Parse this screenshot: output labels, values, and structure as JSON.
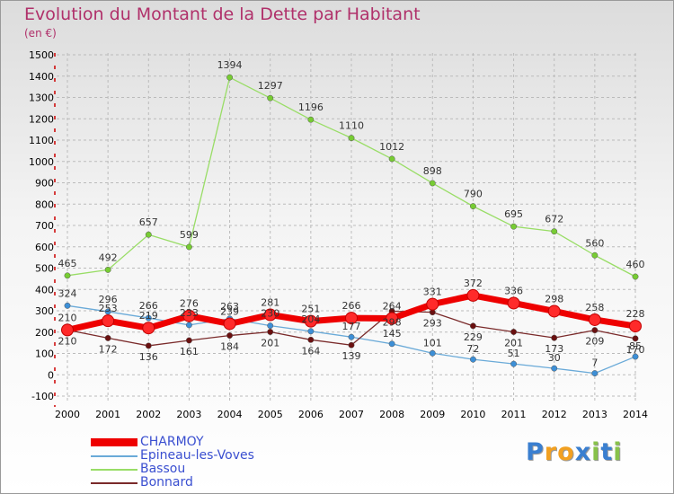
{
  "chart_data": {
    "type": "line",
    "title": "Evolution du Montant de la Dette par Habitant",
    "unit": "(en €)",
    "x": [
      "2000",
      "2001",
      "2002",
      "2003",
      "2004",
      "2005",
      "2006",
      "2007",
      "2008",
      "2009",
      "2010",
      "2011",
      "2012",
      "2013",
      "2014"
    ],
    "ylim": [
      -100,
      1500
    ],
    "yticks": [
      -100,
      0,
      100,
      200,
      300,
      400,
      500,
      600,
      700,
      800,
      900,
      1000,
      1100,
      1200,
      1300,
      1400,
      1500
    ],
    "series": [
      {
        "name": "CHARMOY",
        "color": "#ee0000",
        "markerColor": "#ff2a2a",
        "values": [
          210,
          253,
          219,
          276,
          239,
          281,
          251,
          266,
          264,
          331,
          372,
          336,
          298,
          258,
          228
        ]
      },
      {
        "name": "Epineau-les-Voves",
        "color": "#6aaad8",
        "markerColor": "#3d8fd6",
        "values": [
          324,
          296,
          266,
          233,
          263,
          230,
          204,
          177,
          145,
          101,
          72,
          51,
          30,
          7,
          85
        ]
      },
      {
        "name": "Bassou",
        "color": "#99dd66",
        "markerColor": "#77cc33",
        "values": [
          465,
          492,
          657,
          599,
          1394,
          1297,
          1196,
          1110,
          1012,
          898,
          790,
          695,
          672,
          560,
          460
        ]
      },
      {
        "name": "Bonnard",
        "color": "#7a2a2a",
        "markerColor": "#6a1010",
        "values": [
          210,
          172,
          136,
          161,
          184,
          201,
          164,
          139,
          298,
          293,
          229,
          201,
          173,
          209,
          170
        ]
      }
    ]
  },
  "brand": {
    "letters": [
      "P",
      "r",
      "o",
      "x",
      "i",
      "t",
      "i"
    ],
    "colors": [
      "#3a7fd0",
      "#f2a020",
      "#f2a020",
      "#3a7fd0",
      "#88c24a",
      "#3a7fd0",
      "#88c24a"
    ]
  }
}
